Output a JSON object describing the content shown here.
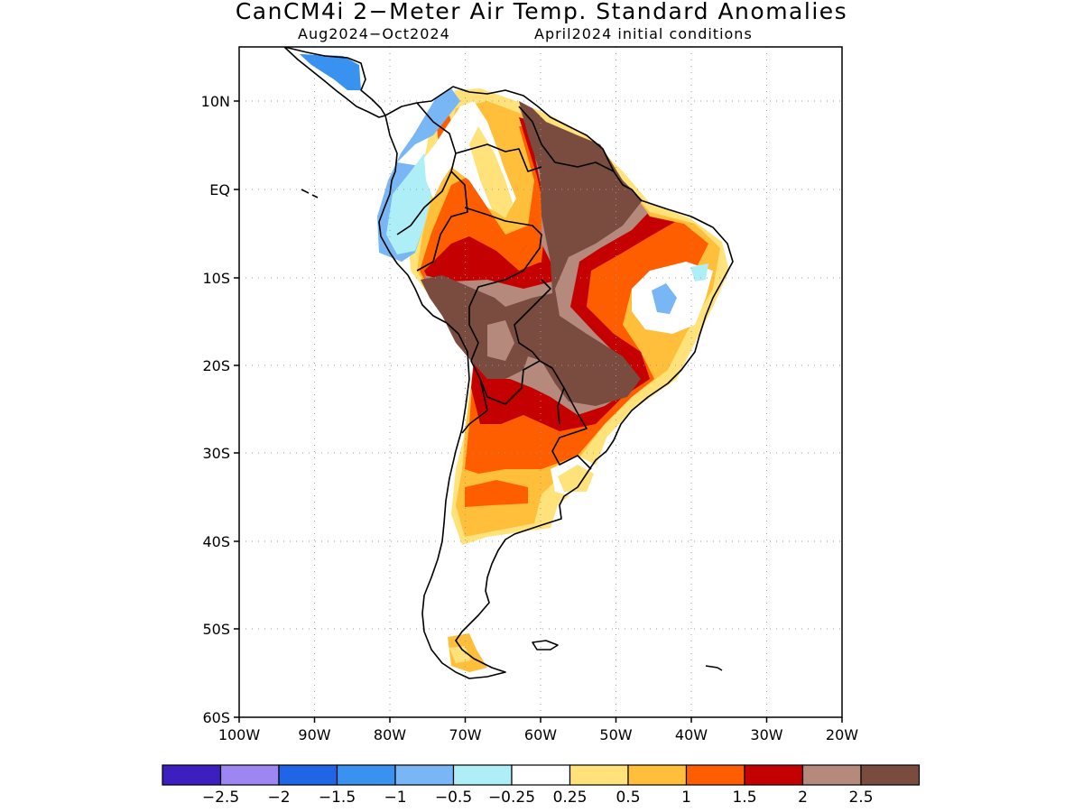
{
  "title": "CanCM4i 2−Meter Air Temp. Standard Anomalies",
  "period": "Aug2024−Oct2024",
  "init": "April2024 initial conditions",
  "lat_labels": [
    "10N",
    "EQ",
    "10S",
    "20S",
    "30S",
    "40S",
    "50S",
    "60S"
  ],
  "lon_labels": [
    "100W",
    "90W",
    "80W",
    "70W",
    "60W",
    "50W",
    "40W",
    "30W",
    "20W"
  ],
  "colorbar": {
    "colors": [
      "#3d1fbf",
      "#9d85f2",
      "#1f66e6",
      "#3a92f0",
      "#78b6f5",
      "#aeeff7",
      "#ffffff",
      "#ffe27a",
      "#ffbf3a",
      "#ff5e00",
      "#c40000",
      "#b58a7c",
      "#794c3f"
    ],
    "labels": [
      "−2.5",
      "−2",
      "−1.5",
      "−1",
      "−0.5",
      "−0.25",
      "0.25",
      "0.5",
      "1",
      "1.5",
      "2",
      "2.5"
    ]
  }
}
